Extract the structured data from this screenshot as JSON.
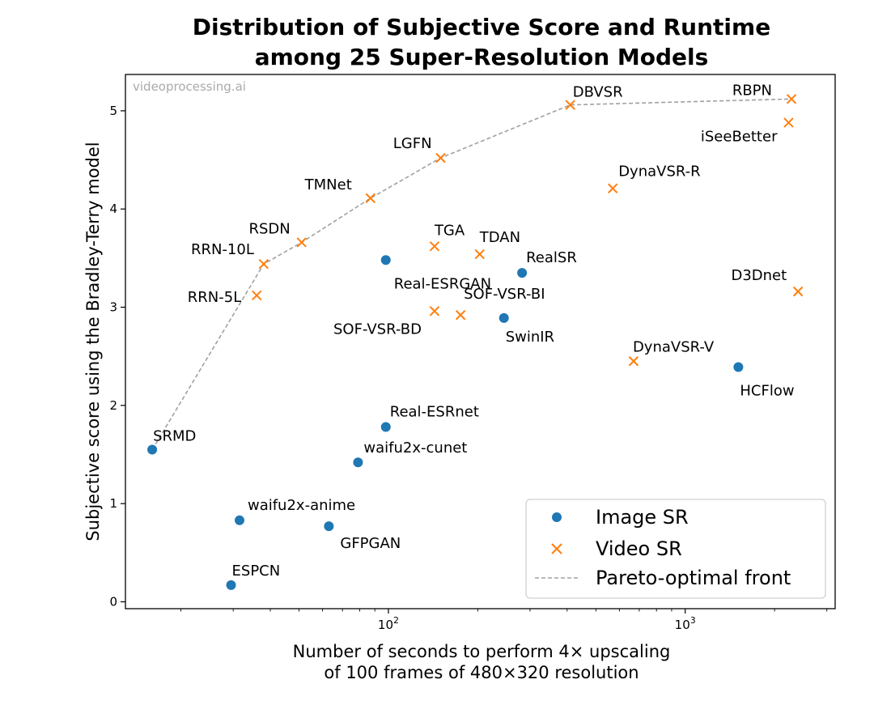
{
  "chart_data": {
    "type": "scatter",
    "title": [
      "Distribution of Subjective Score and Runtime",
      "among 25 Super-Resolution Models"
    ],
    "xlabel": [
      "Number of seconds to perform 4× upscaling",
      "of 100 frames of 480×320 resolution"
    ],
    "ylabel": "Subjective score using the Bradley-Terry model",
    "watermark": "videoprocessing.ai",
    "x_scale": "log",
    "xlim": [
      13,
      3200
    ],
    "ylim": [
      -0.07,
      5.37
    ],
    "x_ticks": [
      {
        "value": 100,
        "base": "10",
        "exp": "2"
      },
      {
        "value": 1000,
        "base": "10",
        "exp": "3"
      }
    ],
    "y_ticks": [
      0,
      1,
      2,
      3,
      4,
      5
    ],
    "grid": false,
    "legend_position": "lower-right",
    "colors": {
      "image_sr": "#1f77b4",
      "video_sr": "#ff7f0e",
      "pareto": "#a0a0a0"
    },
    "series": [
      {
        "name": "Image SR",
        "marker": "circle",
        "points": [
          {
            "label": "SRMD",
            "x": 16,
            "y": 1.55
          },
          {
            "label": "ESPCN",
            "x": 29.5,
            "y": 0.17
          },
          {
            "label": "waifu2x-anime",
            "x": 31.5,
            "y": 0.83
          },
          {
            "label": "GFPGAN",
            "x": 63,
            "y": 0.77
          },
          {
            "label": "waifu2x-cunet",
            "x": 79,
            "y": 1.42
          },
          {
            "label": "Real-ESRnet",
            "x": 98,
            "y": 1.78
          },
          {
            "label": "Real-ESRGAN",
            "x": 98,
            "y": 3.48
          },
          {
            "label": "SwinIR",
            "x": 245,
            "y": 2.89
          },
          {
            "label": "RealSR",
            "x": 282,
            "y": 3.35
          },
          {
            "label": "HCFlow",
            "x": 1510,
            "y": 2.39
          }
        ]
      },
      {
        "name": "Video SR",
        "marker": "x",
        "points": [
          {
            "label": "RRN-5L",
            "x": 36,
            "y": 3.12
          },
          {
            "label": "RRN-10L",
            "x": 38,
            "y": 3.44
          },
          {
            "label": "RSDN",
            "x": 51,
            "y": 3.66
          },
          {
            "label": "TMNet",
            "x": 87,
            "y": 4.11
          },
          {
            "label": "SOF-VSR-BD",
            "x": 143,
            "y": 2.96
          },
          {
            "label": "TGA",
            "x": 143,
            "y": 3.62
          },
          {
            "label": "LGFN",
            "x": 150,
            "y": 4.52
          },
          {
            "label": "SOF-VSR-BI",
            "x": 175,
            "y": 2.92
          },
          {
            "label": "TDAN",
            "x": 203,
            "y": 3.54
          },
          {
            "label": "DBVSR",
            "x": 410,
            "y": 5.06
          },
          {
            "label": "DynaVSR-R",
            "x": 570,
            "y": 4.21
          },
          {
            "label": "DynaVSR-V",
            "x": 670,
            "y": 2.45
          },
          {
            "label": "iSeeBetter",
            "x": 2230,
            "y": 4.88
          },
          {
            "label": "RBPN",
            "x": 2280,
            "y": 5.12
          },
          {
            "label": "D3Dnet",
            "x": 2400,
            "y": 3.16
          }
        ]
      },
      {
        "name": "Pareto-optimal front",
        "style": "dashed",
        "points": [
          {
            "x": 16,
            "y": 1.55
          },
          {
            "x": 38,
            "y": 3.44
          },
          {
            "x": 51,
            "y": 3.66
          },
          {
            "x": 87,
            "y": 4.11
          },
          {
            "x": 150,
            "y": 4.52
          },
          {
            "x": 410,
            "y": 5.06
          },
          {
            "x": 2280,
            "y": 5.12
          }
        ]
      }
    ]
  }
}
